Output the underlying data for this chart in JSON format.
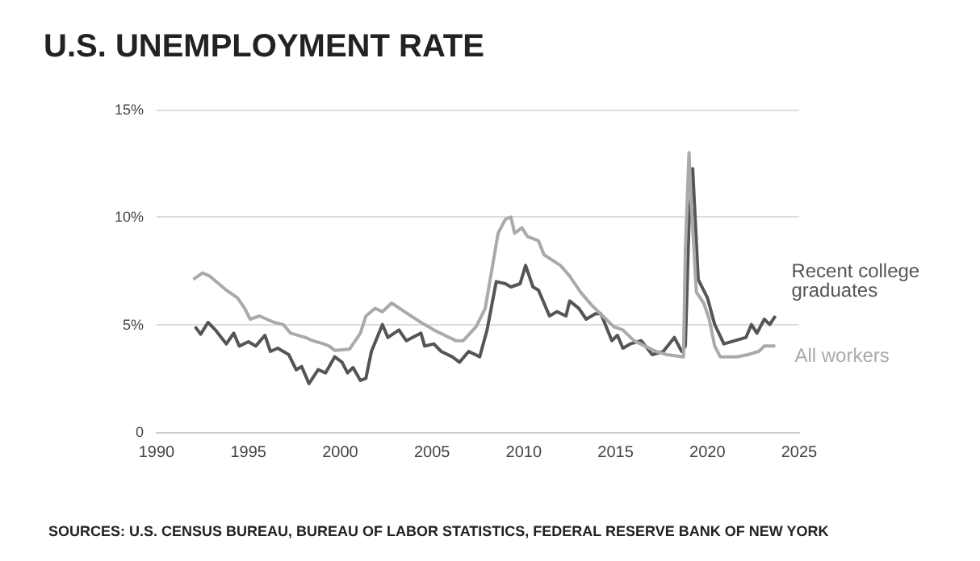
{
  "chart_data": {
    "type": "line",
    "title": "U.S. UNEMPLOYMENT RATE",
    "annotations": [
      "SOURCES: U.S. CENSUS BUREAU, BUREAU OF LABOR STATISTICS, FEDERAL RESERVE BANK OF NEW YORK"
    ],
    "xlim": [
      1990,
      2025
    ],
    "xticks": [
      1990,
      1995,
      2000,
      2005,
      2010,
      2015,
      2020,
      2025
    ],
    "ylim": [
      0,
      15
    ],
    "yticks": [
      0,
      {
        "value": 5,
        "label": "5%"
      },
      {
        "value": 10,
        "label": "10%"
      },
      {
        "value": 15,
        "label": "15%"
      }
    ],
    "grid": "y",
    "marker": "none",
    "line_style": "solid",
    "series": [
      {
        "name": "Recent college graduates",
        "color": "#555555",
        "x": [
          1992.1,
          1992.4,
          1992.8,
          1993.2,
          1993.8,
          1994.2,
          1994.5,
          1995.0,
          1995.4,
          1995.9,
          1996.2,
          1996.6,
          1997.2,
          1997.6,
          1997.9,
          1998.3,
          1998.8,
          1999.2,
          1999.7,
          2000.1,
          2000.4,
          2000.7,
          2001.1,
          2001.4,
          2001.7,
          2002.3,
          2002.6,
          2003.2,
          2003.6,
          2004.4,
          2004.6,
          2005.1,
          2005.5,
          2006.1,
          2006.5,
          2007.0,
          2007.6,
          2008.0,
          2008.5,
          2009.0,
          2009.3,
          2009.8,
          2010.1,
          2010.5,
          2010.8,
          2011.4,
          2011.8,
          2012.3,
          2012.5,
          2013.0,
          2013.4,
          2013.9,
          2014.2,
          2014.8,
          2015.1,
          2015.4,
          2015.8,
          2016.4,
          2017.0,
          2017.6,
          2018.2,
          2018.6,
          2018.8,
          2019.0,
          2019.2,
          2019.5,
          2020.0,
          2020.4,
          2020.9,
          2021.5,
          2022.1,
          2022.4,
          2022.7,
          2023.1,
          2023.4,
          2023.7
        ],
        "values": [
          4.9,
          4.55,
          5.1,
          4.75,
          4.1,
          4.6,
          4.0,
          4.2,
          4.0,
          4.5,
          3.75,
          3.9,
          3.6,
          2.9,
          3.05,
          2.25,
          2.9,
          2.75,
          3.5,
          3.25,
          2.75,
          3.0,
          2.4,
          2.5,
          3.75,
          5.0,
          4.4,
          4.75,
          4.25,
          4.6,
          4.0,
          4.1,
          3.75,
          3.5,
          3.25,
          3.75,
          3.5,
          4.75,
          7.0,
          6.9,
          6.75,
          6.9,
          7.75,
          6.75,
          6.6,
          5.4,
          5.6,
          5.4,
          6.1,
          5.75,
          5.25,
          5.5,
          5.5,
          4.25,
          4.5,
          3.9,
          4.1,
          4.25,
          3.6,
          3.75,
          4.4,
          3.75,
          4.0,
          9.75,
          12.25,
          7.1,
          6.25,
          5.0,
          4.1,
          4.25,
          4.4,
          5.0,
          4.6,
          5.25,
          5.0,
          5.4
        ]
      },
      {
        "name": "All workers",
        "color": "#aaaaaa",
        "x": [
          1992.0,
          1992.5,
          1992.9,
          1993.8,
          1994.4,
          1994.8,
          1995.1,
          1995.6,
          1996.4,
          1996.9,
          1997.3,
          1998.1,
          1998.5,
          1999.1,
          1999.4,
          1999.7,
          2000.5,
          2001.1,
          2001.4,
          2001.9,
          2002.3,
          2002.8,
          2003.5,
          2004.4,
          2005.1,
          2005.7,
          2006.3,
          2006.7,
          2007.4,
          2007.9,
          2008.3,
          2008.6,
          2009.0,
          2009.3,
          2009.5,
          2009.9,
          2010.2,
          2010.8,
          2011.1,
          2012.0,
          2012.5,
          2013.1,
          2013.7,
          2014.3,
          2014.9,
          2015.4,
          2016.0,
          2016.6,
          2017.2,
          2017.8,
          2018.7,
          2018.8,
          2019.0,
          2019.1,
          2019.4,
          2019.8,
          2020.1,
          2020.4,
          2020.7,
          2021.6,
          2022.2,
          2022.8,
          2023.1,
          2023.7
        ],
        "values": [
          7.1,
          7.4,
          7.25,
          6.6,
          6.25,
          5.75,
          5.25,
          5.4,
          5.1,
          5.0,
          4.6,
          4.4,
          4.25,
          4.1,
          4.0,
          3.8,
          3.85,
          4.6,
          5.4,
          5.75,
          5.6,
          6.0,
          5.6,
          5.1,
          4.75,
          4.5,
          4.25,
          4.25,
          4.9,
          5.75,
          7.75,
          9.25,
          9.9,
          10.0,
          9.25,
          9.5,
          9.1,
          8.9,
          8.25,
          7.75,
          7.25,
          6.5,
          5.9,
          5.4,
          4.9,
          4.75,
          4.25,
          4.0,
          3.75,
          3.6,
          3.5,
          8.5,
          13.0,
          11.0,
          6.5,
          6.0,
          5.25,
          4.0,
          3.5,
          3.5,
          3.6,
          3.75,
          4.0,
          4.0
        ]
      }
    ]
  }
}
